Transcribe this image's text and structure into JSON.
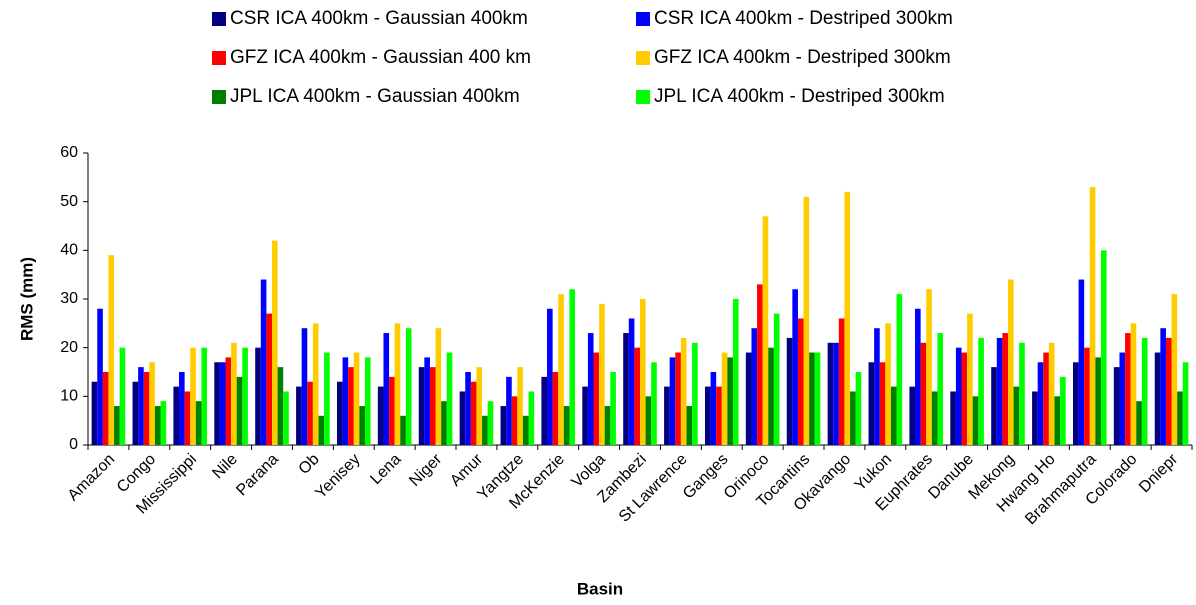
{
  "chart_data": {
    "type": "bar",
    "x_label": "Basin",
    "y_label": "RMS (mm)",
    "categories": [
      "Amazon",
      "Congo",
      "Mississippi",
      "Nile",
      "Parana",
      "Ob",
      "Yenisey",
      "Lena",
      "Niger",
      "Amur",
      "Yangtze",
      "McKenzie",
      "Volga",
      "Zambezi",
      "St Lawrence",
      "Ganges",
      "Orinoco",
      "Tocantins",
      "Okavango",
      "Yukon",
      "Euphrates",
      "Danube",
      "Mekong",
      "Hwang Ho",
      "Brahmaputra",
      "Colorado",
      "Dniepr"
    ],
    "series": [
      {
        "name": "CSR ICA 400km - Gaussian 400km",
        "color": "#000080",
        "values": [
          13,
          13,
          12,
          17,
          20,
          12,
          13,
          12,
          16,
          11,
          8,
          14,
          12,
          23,
          12,
          12,
          19,
          22,
          21,
          17,
          12,
          11,
          16,
          11,
          17,
          16,
          19
        ]
      },
      {
        "name": "CSR ICA 400km - Destriped 300km",
        "color": "#0000ff",
        "values": [
          28,
          16,
          15,
          17,
          34,
          24,
          18,
          23,
          18,
          15,
          14,
          28,
          23,
          26,
          18,
          15,
          24,
          32,
          21,
          24,
          28,
          20,
          22,
          17,
          34,
          19,
          24
        ]
      },
      {
        "name": "GFZ ICA 400km - Gaussian 400 km",
        "color": "#ff0000",
        "values": [
          15,
          15,
          11,
          18,
          27,
          13,
          16,
          14,
          16,
          13,
          10,
          15,
          19,
          20,
          19,
          12,
          33,
          26,
          26,
          17,
          21,
          19,
          23,
          19,
          20,
          23,
          22
        ]
      },
      {
        "name": "GFZ ICA 400km - Destriped 300km",
        "color": "#ffcc00",
        "values": [
          39,
          17,
          20,
          21,
          42,
          25,
          19,
          25,
          24,
          16,
          16,
          31,
          29,
          30,
          22,
          19,
          47,
          51,
          52,
          25,
          32,
          27,
          34,
          21,
          53,
          25,
          31
        ]
      },
      {
        "name": "JPL ICA 400km - Gaussian 400km",
        "color": "#008000",
        "values": [
          8,
          8,
          9,
          14,
          16,
          6,
          8,
          6,
          9,
          6,
          6,
          8,
          8,
          10,
          8,
          18,
          20,
          19,
          11,
          12,
          11,
          10,
          12,
          10,
          18,
          9,
          11
        ]
      },
      {
        "name": "JPL ICA 400km - Destriped 300km",
        "color": "#00ff00",
        "values": [
          20,
          9,
          20,
          20,
          11,
          19,
          18,
          24,
          19,
          9,
          11,
          32,
          15,
          17,
          21,
          30,
          27,
          19,
          15,
          31,
          23,
          22,
          21,
          14,
          40,
          22,
          17
        ]
      }
    ],
    "ylim": [
      0,
      60
    ],
    "yticks": [
      0,
      10,
      20,
      30,
      40,
      50,
      60
    ],
    "grid": false
  }
}
